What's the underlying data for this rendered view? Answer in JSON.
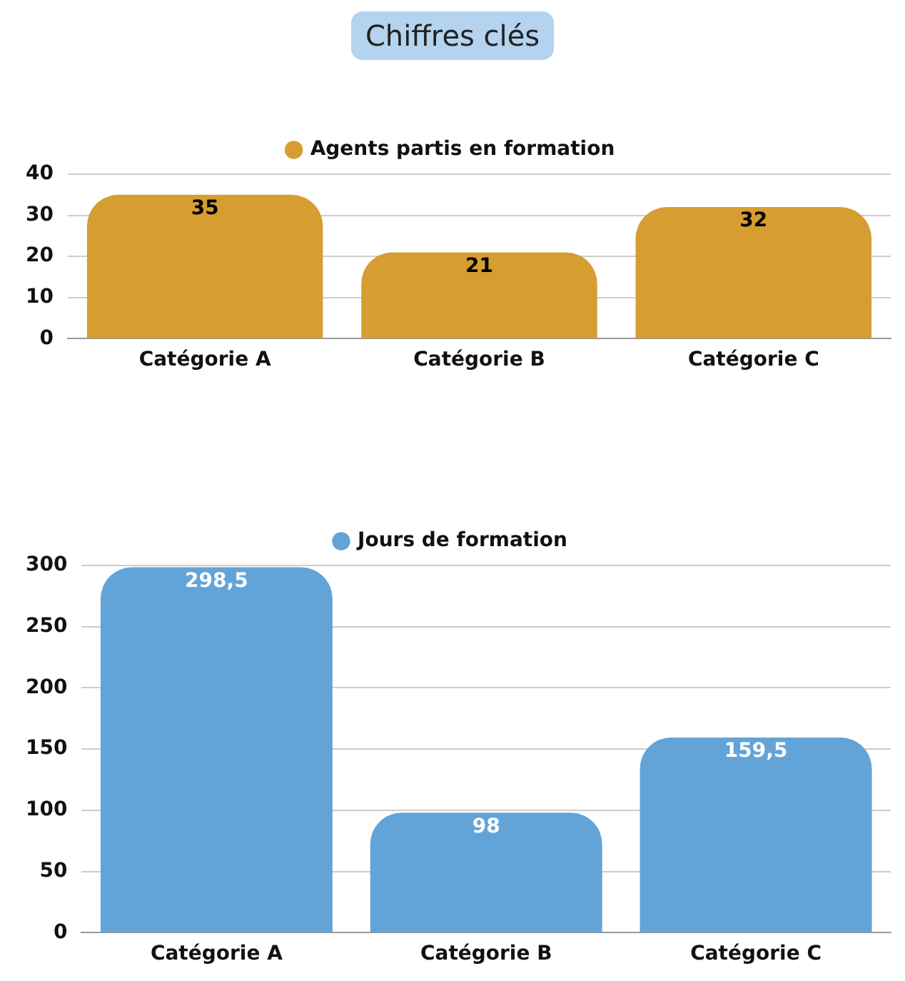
{
  "chart_data": [
    {
      "type": "bar",
      "title": "Chiffres clés",
      "categories": [
        "Catégorie A",
        "Catégorie B",
        "Catégorie C"
      ],
      "series": [
        {
          "name": "Agents partis en formation",
          "color": "#d69e31",
          "values": [
            35,
            21,
            32
          ],
          "value_labels": [
            "35",
            "21",
            "32"
          ]
        }
      ],
      "ylim": [
        0,
        40
      ],
      "yticks": [
        0,
        10,
        20,
        30,
        40
      ],
      "grid": "y",
      "legend": "top"
    },
    {
      "type": "bar",
      "categories": [
        "Catégorie A",
        "Catégorie B",
        "Catégorie C"
      ],
      "series": [
        {
          "name": "Jours de formation",
          "color": "#62a4d8",
          "values": [
            298.5,
            98,
            159.5
          ],
          "value_labels": [
            "298,5",
            "98",
            "159,5"
          ]
        }
      ],
      "ylim": [
        0,
        300
      ],
      "yticks": [
        0,
        50,
        100,
        150,
        200,
        250,
        300
      ],
      "grid": "y",
      "legend": "top"
    }
  ]
}
